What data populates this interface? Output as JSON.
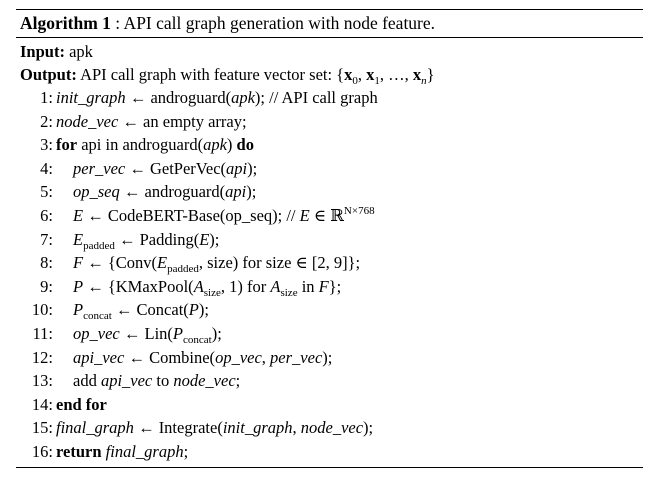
{
  "caption": {
    "label": "Algorithm 1",
    "text": " : API call graph generation with node feature."
  },
  "input": {
    "label": "Input:",
    "value": " apk"
  },
  "output": {
    "label": "Output:",
    "text": " API call graph with feature vector set: {",
    "x0": "x",
    "s0": "0",
    "x1": "x",
    "s1": "1",
    "dots": "…",
    "xn": "x",
    "sn": "n",
    "close": "}"
  },
  "lines": {
    "l1": {
      "num": "1:",
      "v": "init_graph",
      "t": " ← androguard(",
      "a": "apk",
      "t2": "); // API call graph"
    },
    "l2": {
      "num": "2:",
      "v": "node_vec",
      "t": " ← an empty array;"
    },
    "l3": {
      "num": "3:",
      "kw": "for",
      "t": " api in androguard(",
      "a": "apk",
      "t2": ") ",
      "kw2": "do"
    },
    "l4": {
      "num": "4:",
      "v": "per_vec",
      "t": " ← GetPerVec(",
      "a": "api",
      "t2": ");"
    },
    "l5": {
      "num": "5:",
      "v": "op_seq",
      "t": " ← androguard(",
      "a": "api",
      "t2": ");"
    },
    "l6": {
      "num": "6:",
      "v": "E",
      "t": " ← CodeBERT-Base(op_seq); // ",
      "v2": "E",
      "t2": " ∈ ℝ",
      "sup": "N×768"
    },
    "l7": {
      "num": "7:",
      "v": "E",
      "sub": "padded",
      "t": " ← Padding(",
      "a": "E",
      "t2": ");"
    },
    "l8": {
      "num": "8:",
      "v": "F",
      "t": " ← {Conv(",
      "a": "E",
      "sub": "padded",
      "t2": ", size) for size ∈ [2, 9]};"
    },
    "l9": {
      "num": "9:",
      "v": "P",
      "t": " ← {KMaxPool(",
      "a": "A",
      "sub": "size",
      "t2": ", 1) for ",
      "a2": "A",
      "sub2": "size",
      "t3": " in ",
      "a3": "F",
      "t4": "};"
    },
    "l10": {
      "num": "10:",
      "v": "P",
      "sub": "concat",
      "t": " ← Concat(",
      "a": "P",
      "t2": ");"
    },
    "l11": {
      "num": "11:",
      "v": "op_vec",
      "t": " ← Lin(",
      "a": "P",
      "sub": "concat",
      "t2": ");"
    },
    "l12": {
      "num": "12:",
      "v": "api_vec",
      "t": " ← Combine(",
      "a": "op_vec",
      "t2": ", ",
      "a2": "per_vec",
      "t3": ");"
    },
    "l13": {
      "num": "13:",
      "t": "add ",
      "a": "api_vec",
      "t2": " to ",
      "a2": "node_vec",
      "t3": ";"
    },
    "l14": {
      "num": "14:",
      "kw": "end for"
    },
    "l15": {
      "num": "15:",
      "v": "final_graph",
      "t": " ← Integrate(",
      "a": "init_graph",
      "t2": ", ",
      "a2": "node_vec",
      "t3": ");"
    },
    "l16": {
      "num": "16:",
      "kw": "return",
      "t": " ",
      "v": "final_graph",
      "t2": ";"
    }
  }
}
